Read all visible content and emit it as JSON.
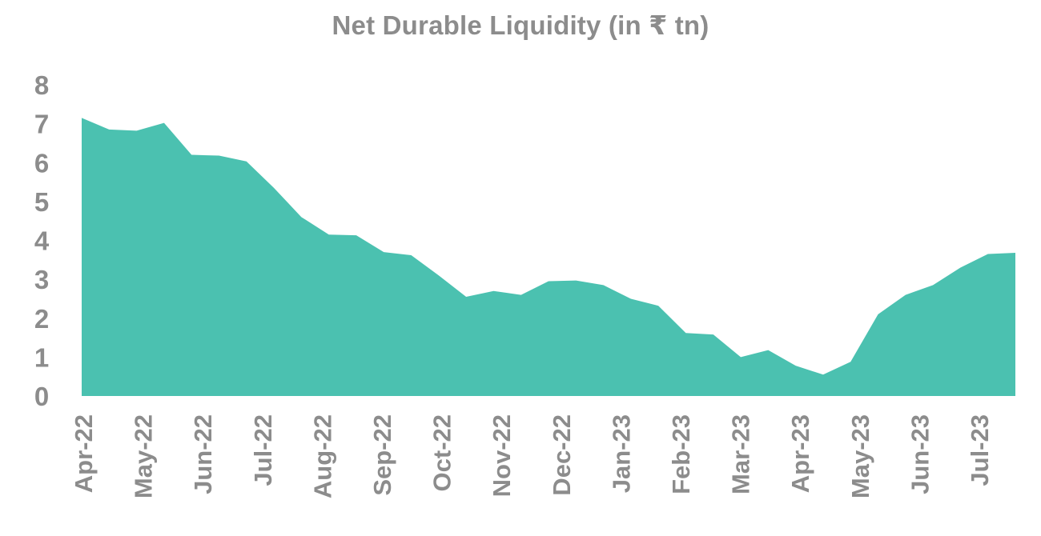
{
  "chart_data": {
    "type": "area",
    "title": "Net Durable Liquidity (in ₹ tn)",
    "xlabel": "",
    "ylabel": "",
    "ylim": [
      0,
      8
    ],
    "yticks": [
      0,
      1,
      2,
      3,
      4,
      5,
      6,
      7,
      8
    ],
    "xtick_labels": [
      "Apr-22",
      "May-22",
      "Jun-22",
      "Jul-22",
      "Aug-22",
      "Sep-22",
      "Oct-22",
      "Nov-22",
      "Dec-22",
      "Jan-23",
      "Feb-23",
      "Mar-23",
      "Apr-23",
      "May-23",
      "Jun-23",
      "Jul-23"
    ],
    "grid": false,
    "legend": false,
    "colors": {
      "fill": "#4bc1b0",
      "axis_text": "#8c8c8c"
    },
    "series": [
      {
        "values": [
          7.15,
          6.85,
          6.82,
          7.02,
          6.2,
          6.18,
          6.03,
          5.35,
          4.6,
          4.15,
          4.13,
          3.7,
          3.62,
          3.1,
          2.55,
          2.7,
          2.6,
          2.95,
          2.97,
          2.85,
          2.5,
          2.32,
          1.62,
          1.58,
          1.0,
          1.18,
          0.78,
          0.55,
          0.88,
          2.1,
          2.6,
          2.85,
          3.3,
          3.65,
          3.68
        ]
      }
    ]
  }
}
